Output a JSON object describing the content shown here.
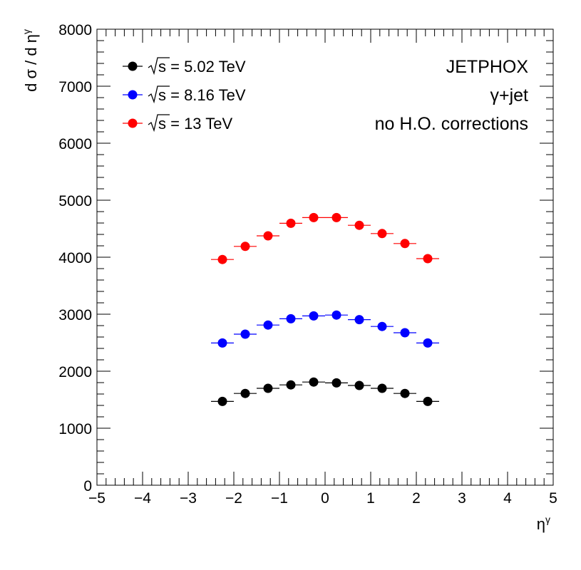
{
  "chart_data": {
    "type": "scatter",
    "xlabel": "η",
    "xlabel_sup": "γ",
    "ylabel": "d σ / d η",
    "ylabel_sup": "γ",
    "xlim": [
      -5,
      5
    ],
    "ylim": [
      0,
      8000
    ],
    "x_ticks": [
      -5,
      -4,
      -3,
      -2,
      -1,
      0,
      1,
      2,
      3,
      4,
      5
    ],
    "x_tick_labels": [
      "−5",
      "−4",
      "−3",
      "−2",
      "−1",
      "0",
      "1",
      "2",
      "3",
      "4",
      "5"
    ],
    "y_ticks": [
      0,
      1000,
      2000,
      3000,
      4000,
      5000,
      6000,
      7000,
      8000
    ],
    "y_tick_labels": [
      "0",
      "1000",
      "2000",
      "3000",
      "4000",
      "5000",
      "6000",
      "7000",
      "8000"
    ],
    "x_bin_half_width": 0.25,
    "x": [
      -2.25,
      -1.75,
      -1.25,
      -0.75,
      -0.25,
      0.25,
      0.75,
      1.25,
      1.75,
      2.25
    ],
    "series": [
      {
        "name": "= 5.02 TeV",
        "color": "#000000",
        "values": [
          1470,
          1610,
          1700,
          1760,
          1810,
          1795,
          1750,
          1700,
          1610,
          1470
        ]
      },
      {
        "name": "= 8.16 TeV",
        "color": "#0000ff",
        "values": [
          2495,
          2650,
          2810,
          2920,
          2970,
          2985,
          2905,
          2785,
          2675,
          2495
        ]
      },
      {
        "name": "= 13 TeV",
        "color": "#ff0000",
        "values": [
          3960,
          4190,
          4375,
          4595,
          4695,
          4695,
          4560,
          4415,
          4240,
          3975
        ]
      }
    ],
    "legend_prefix": "s",
    "legend_position": "top-left",
    "annotations": [
      "JETPHOX",
      "γ+jet",
      "no H.O. corrections"
    ],
    "grid": false
  }
}
